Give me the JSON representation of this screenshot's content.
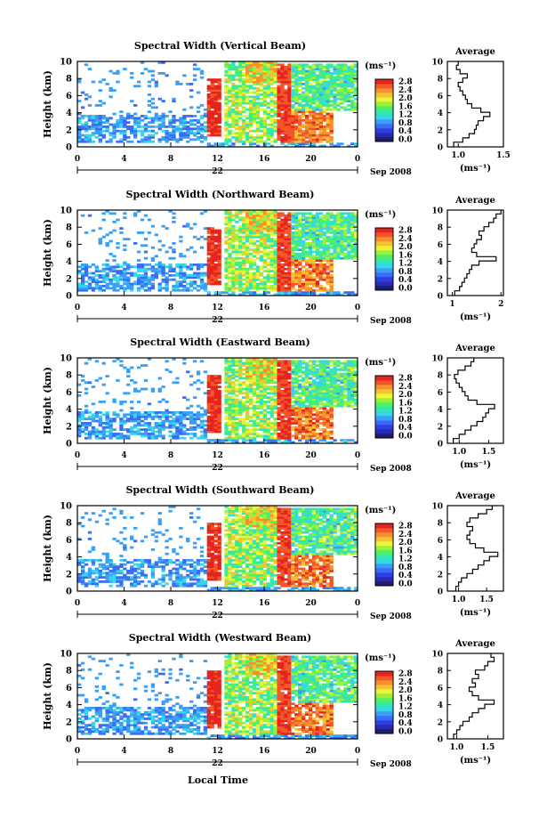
{
  "figure": {
    "common_x_label": "Local Time",
    "date_label": "Sep 2008",
    "day_label": "22",
    "unit_label": "(ms⁻¹)",
    "avg_title": "Average",
    "y_label": "Height (km)"
  },
  "colorbar": {
    "ticks": [
      "0.0",
      "0.4",
      "0.8",
      "1.2",
      "1.6",
      "2.0",
      "2.4",
      "2.8"
    ],
    "colors": [
      "#1c1c6a",
      "#2a2ab0",
      "#2f3fe6",
      "#3a6cf5",
      "#3aa0f5",
      "#38d6e8",
      "#33e8b0",
      "#4cf06a",
      "#9ef039",
      "#e8f53a",
      "#f5c232",
      "#f5902c",
      "#f2562a",
      "#e6241e"
    ]
  },
  "chart_data": [
    {
      "type": "heatmap",
      "title": "Spectral Width (Vertical Beam)",
      "xlabel": "",
      "ylabel": "Height (km)",
      "x_ticks": [
        "0",
        "4",
        "8",
        "12",
        "16",
        "20",
        "0"
      ],
      "xlim": [
        0,
        24
      ],
      "y_ticks": [
        "0",
        "2",
        "4",
        "6",
        "8",
        "10"
      ],
      "ylim": [
        0,
        10
      ],
      "unit": "ms-1",
      "colorbar_range": [
        0.0,
        2.8
      ],
      "average_profile": {
        "x_ticks": [
          "1.0",
          "1.5"
        ],
        "xlim": [
          0.88,
          1.5
        ],
        "ylim": [
          0,
          10
        ],
        "height_km": [
          0.3,
          0.8,
          1.3,
          1.8,
          2.3,
          2.8,
          3.3,
          3.8,
          4.3,
          4.8,
          5.3,
          5.8,
          6.3,
          6.8,
          7.3,
          7.8,
          8.3,
          8.8,
          9.3,
          9.8
        ],
        "value": [
          0.95,
          1.05,
          1.12,
          1.18,
          1.2,
          1.22,
          1.28,
          1.35,
          1.25,
          1.15,
          1.1,
          1.08,
          1.05,
          1.02,
          1.0,
          1.05,
          1.1,
          1.02,
          0.98,
          1.0
        ]
      }
    },
    {
      "type": "heatmap",
      "title": "Spectral Width (Northward Beam)",
      "xlabel": "",
      "ylabel": "Height (km)",
      "x_ticks": [
        "0",
        "4",
        "8",
        "12",
        "16",
        "20",
        "0"
      ],
      "xlim": [
        0,
        24
      ],
      "y_ticks": [
        "0",
        "2",
        "4",
        "6",
        "8",
        "10"
      ],
      "ylim": [
        0,
        10
      ],
      "unit": "ms-1",
      "colorbar_range": [
        0.0,
        2.8
      ],
      "average_profile": {
        "x_ticks": [
          "1",
          "2"
        ],
        "xlim": [
          0.9,
          2.05
        ],
        "ylim": [
          0,
          10
        ],
        "height_km": [
          0.3,
          0.8,
          1.3,
          1.8,
          2.3,
          2.8,
          3.3,
          3.8,
          4.3,
          4.8,
          5.3,
          5.8,
          6.3,
          6.8,
          7.3,
          7.8,
          8.3,
          8.8,
          9.3,
          9.8
        ],
        "value": [
          1.05,
          1.15,
          1.2,
          1.25,
          1.3,
          1.35,
          1.4,
          1.55,
          1.9,
          1.5,
          1.4,
          1.45,
          1.5,
          1.6,
          1.55,
          1.65,
          1.75,
          1.85,
          1.9,
          2.0
        ]
      }
    },
    {
      "type": "heatmap",
      "title": "Spectral Width (Eastward Beam)",
      "xlabel": "",
      "ylabel": "Height (km)",
      "x_ticks": [
        "0",
        "4",
        "8",
        "12",
        "16",
        "20",
        "0"
      ],
      "xlim": [
        0,
        24
      ],
      "y_ticks": [
        "0",
        "2",
        "4",
        "6",
        "8",
        "10"
      ],
      "ylim": [
        0,
        10
      ],
      "unit": "ms-1",
      "colorbar_range": [
        0.0,
        2.8
      ],
      "average_profile": {
        "x_ticks": [
          "1.0",
          "1.5"
        ],
        "xlim": [
          0.8,
          1.75
        ],
        "ylim": [
          0,
          10
        ],
        "height_km": [
          0.3,
          0.8,
          1.3,
          1.8,
          2.3,
          2.8,
          3.3,
          3.8,
          4.3,
          4.8,
          5.3,
          5.8,
          6.3,
          6.8,
          7.3,
          7.8,
          8.3,
          8.8,
          9.3,
          9.8
        ],
        "value": [
          0.9,
          1.0,
          1.1,
          1.2,
          1.3,
          1.4,
          1.45,
          1.5,
          1.6,
          1.3,
          1.15,
          1.1,
          1.05,
          1.0,
          0.95,
          0.92,
          0.98,
          1.1,
          1.2,
          1.25
        ]
      }
    },
    {
      "type": "heatmap",
      "title": "Spectral Width (Southward Beam)",
      "xlabel": "",
      "ylabel": "Height (km)",
      "x_ticks": [
        "0",
        "4",
        "8",
        "12",
        "16",
        "20",
        "0"
      ],
      "xlim": [
        0,
        24
      ],
      "y_ticks": [
        "0",
        "2",
        "4",
        "6",
        "8",
        "10"
      ],
      "ylim": [
        0,
        10
      ],
      "unit": "ms-1",
      "colorbar_range": [
        0.0,
        2.8
      ],
      "average_profile": {
        "x_ticks": [
          "1.0",
          "1.5"
        ],
        "xlim": [
          0.8,
          1.8
        ],
        "ylim": [
          0,
          10
        ],
        "height_km": [
          0.3,
          0.8,
          1.3,
          1.8,
          2.3,
          2.8,
          3.3,
          3.8,
          4.3,
          4.8,
          5.3,
          5.8,
          6.3,
          6.8,
          7.3,
          7.8,
          8.3,
          8.8,
          9.3,
          9.8
        ],
        "value": [
          0.95,
          1.0,
          1.05,
          1.15,
          1.25,
          1.35,
          1.45,
          1.55,
          1.7,
          1.45,
          1.3,
          1.2,
          1.15,
          1.2,
          1.25,
          1.15,
          1.2,
          1.35,
          1.5,
          1.6
        ]
      }
    },
    {
      "type": "heatmap",
      "title": "Spectral Width (Westward Beam)",
      "xlabel": "Local Time",
      "ylabel": "Height (km)",
      "x_ticks": [
        "0",
        "4",
        "8",
        "12",
        "16",
        "20",
        "0"
      ],
      "xlim": [
        0,
        24
      ],
      "y_ticks": [
        "0",
        "2",
        "4",
        "6",
        "8",
        "10"
      ],
      "ylim": [
        0,
        10
      ],
      "unit": "ms-1",
      "colorbar_range": [
        0.0,
        2.8
      ],
      "average_profile": {
        "x_ticks": [
          "1.0",
          "1.5"
        ],
        "xlim": [
          0.85,
          1.75
        ],
        "ylim": [
          0,
          10
        ],
        "height_km": [
          0.3,
          0.8,
          1.3,
          1.8,
          2.3,
          2.8,
          3.3,
          3.8,
          4.3,
          4.8,
          5.3,
          5.8,
          6.3,
          6.8,
          7.3,
          7.8,
          8.3,
          8.8,
          9.3,
          9.8
        ],
        "value": [
          0.95,
          1.0,
          1.05,
          1.1,
          1.2,
          1.25,
          1.35,
          1.45,
          1.6,
          1.35,
          1.25,
          1.2,
          1.3,
          1.25,
          1.35,
          1.3,
          1.45,
          1.5,
          1.6,
          1.55
        ]
      }
    }
  ]
}
